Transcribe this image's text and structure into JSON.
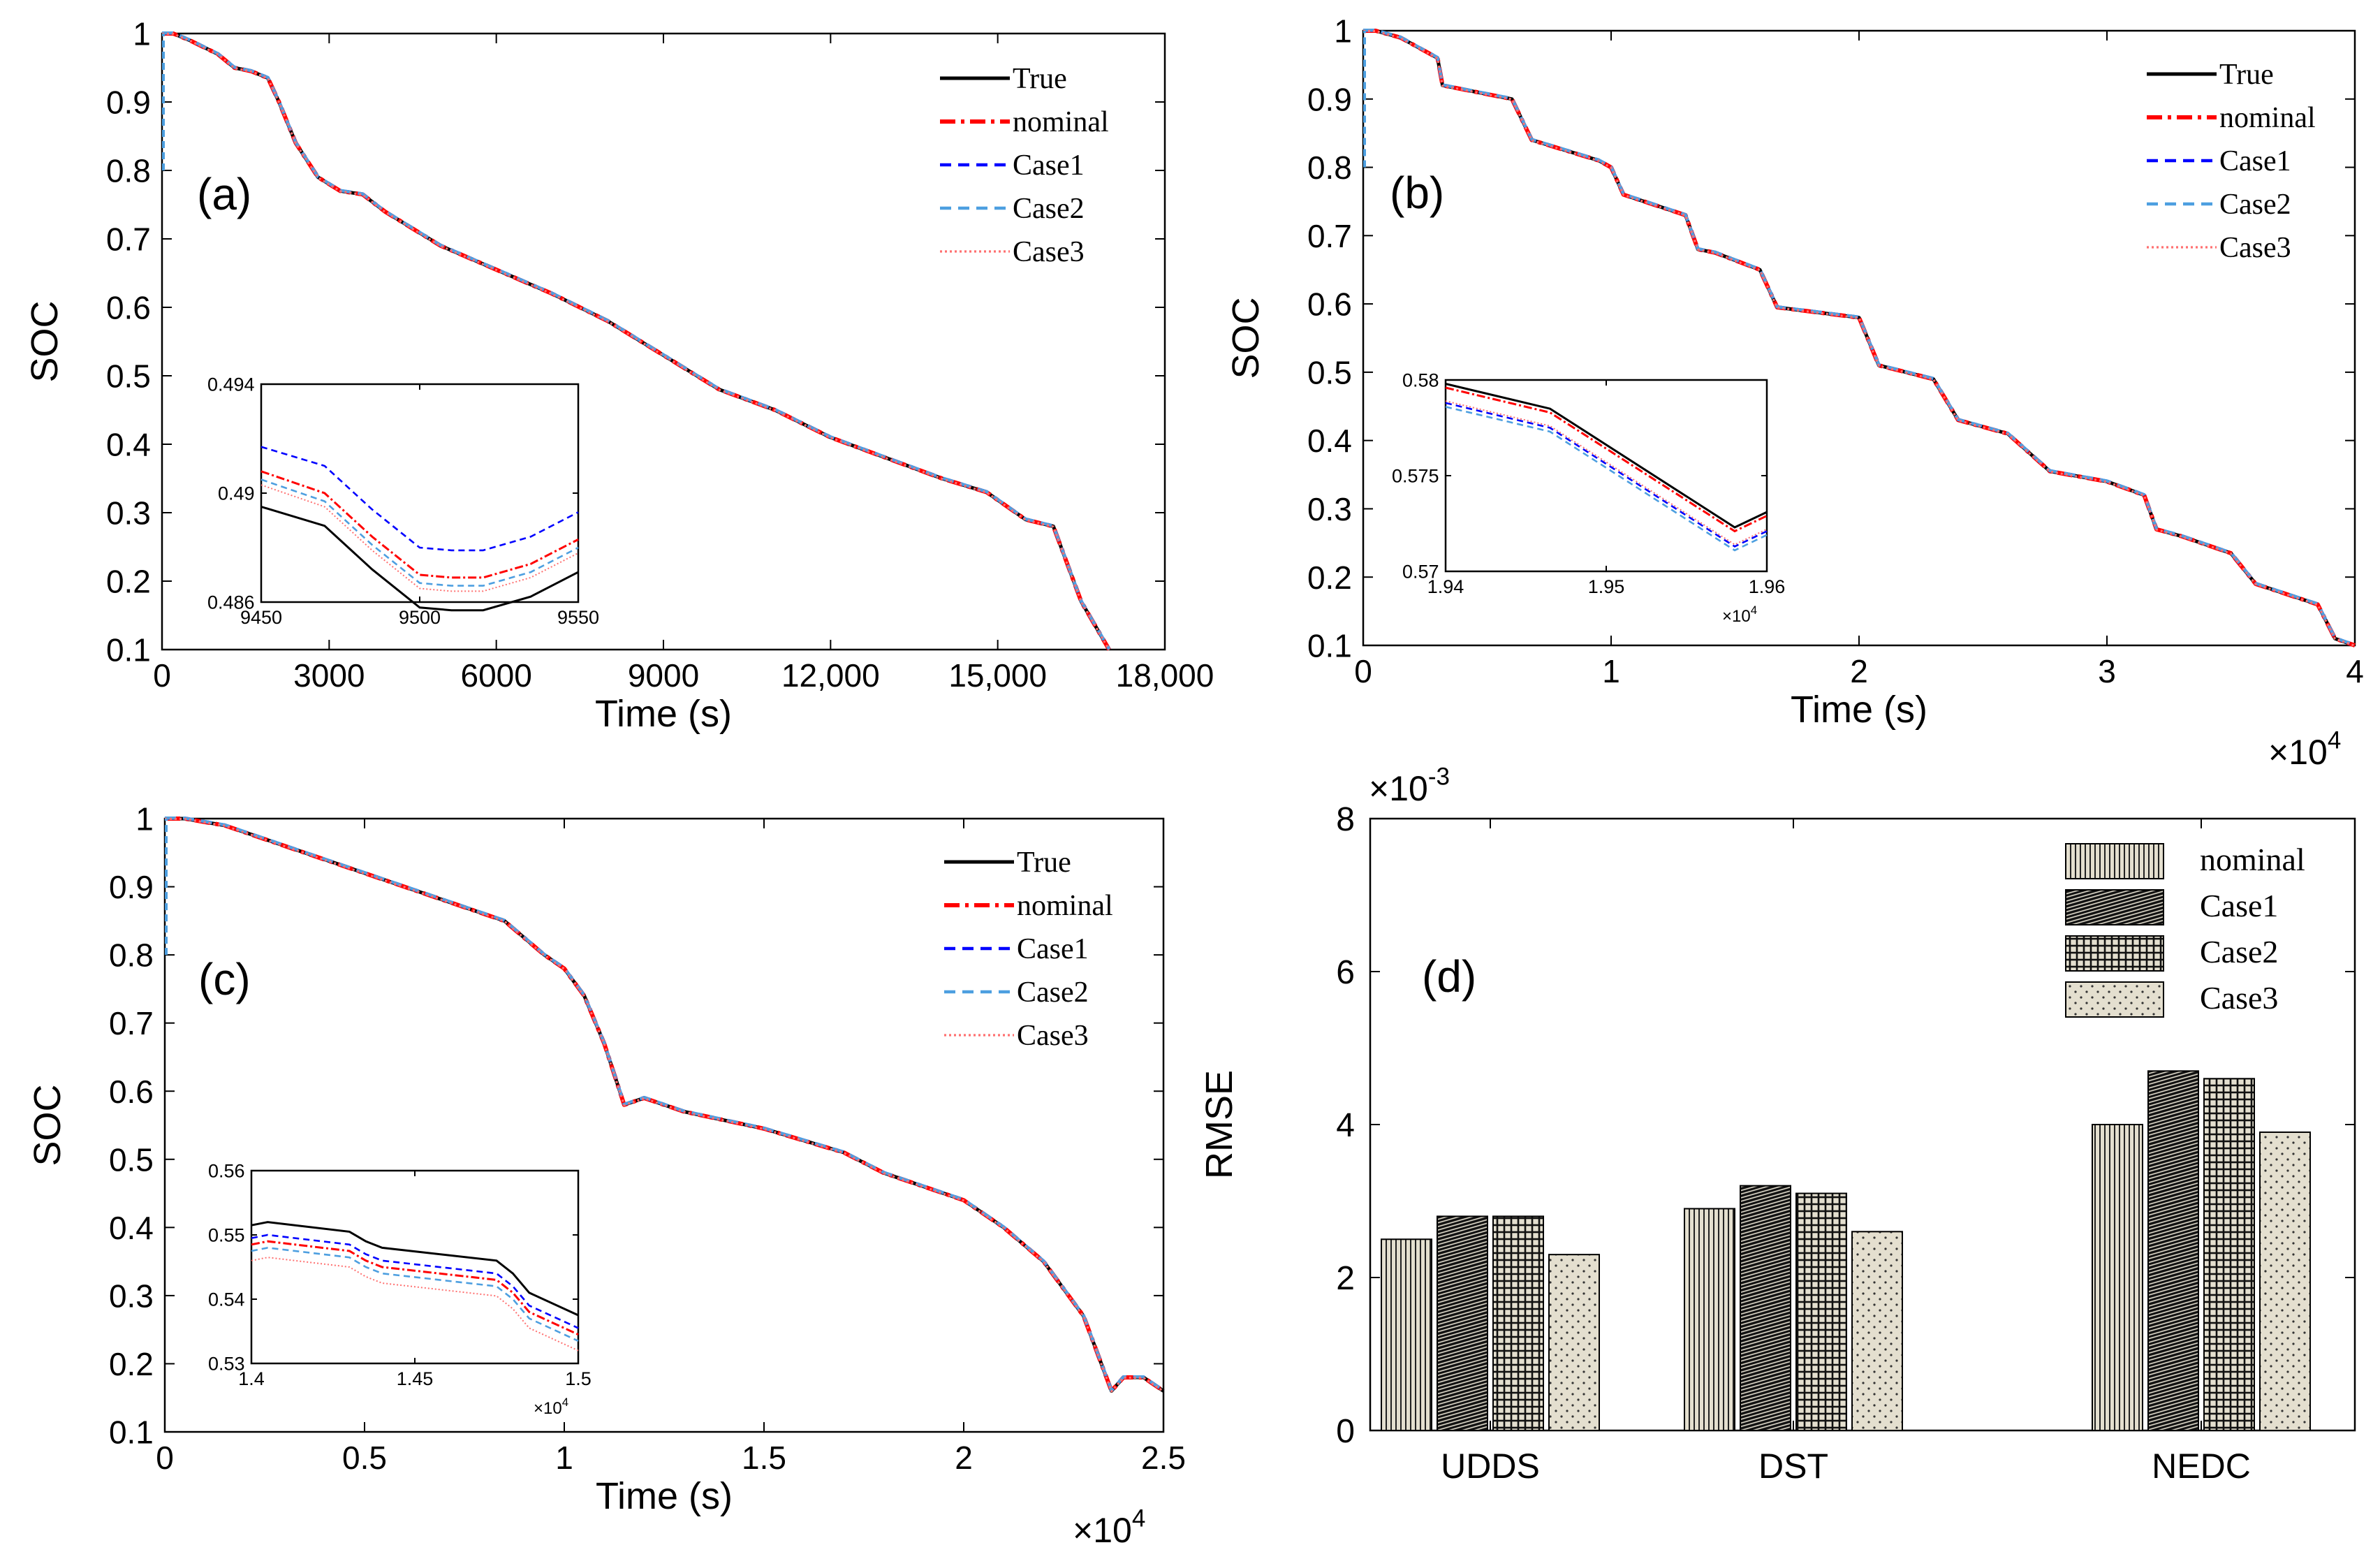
{
  "figure": {
    "description_none": ""
  },
  "legend_soc": [
    "True",
    "nominal",
    "Case1",
    "Case2",
    "Case3"
  ],
  "legend_rmse": [
    "nominal",
    "Case1",
    "Case2",
    "Case3"
  ],
  "colors": {
    "True": "#000000",
    "nominal": "#ff0000",
    "Case1": "#0000ff",
    "Case2": "#4d9fe0",
    "Case3": "#ff7070"
  },
  "chart_data": [
    {
      "type": "line",
      "panel": "(a)",
      "xlabel": "Time (s)",
      "ylabel": "SOC",
      "xlim": [
        0,
        18000
      ],
      "ylim": [
        0.1,
        1
      ],
      "xticks": [
        0,
        3000,
        6000,
        9000,
        12000,
        15000,
        18000
      ],
      "xtick_labels": [
        "0",
        "3000",
        "6000",
        "9000",
        "12,000",
        "15,000",
        "18,000"
      ],
      "yticks": [
        0.1,
        0.2,
        0.3,
        0.4,
        0.5,
        0.6,
        0.7,
        0.8,
        0.9,
        1
      ],
      "ytick_labels": [
        "0.1",
        "0.2",
        "0.3",
        "0.4",
        "0.5",
        "0.6",
        "0.7",
        "0.8",
        "0.9",
        "1"
      ],
      "x_multiplier": "",
      "series_names": [
        "True",
        "nominal",
        "Case1",
        "Case2",
        "Case3"
      ],
      "trajectory": {
        "x": [
          0,
          200,
          500,
          1000,
          1300,
          1600,
          1900,
          2100,
          2400,
          2800,
          3200,
          3600,
          4000,
          4500,
          5000,
          6000,
          7000,
          8000,
          9000,
          10000,
          11000,
          12000,
          13000,
          14000,
          14800,
          15500,
          16000,
          16500,
          17000
        ],
        "y": [
          1.0,
          1.0,
          0.99,
          0.97,
          0.95,
          0.945,
          0.935,
          0.9,
          0.84,
          0.79,
          0.77,
          0.765,
          0.74,
          0.715,
          0.69,
          0.655,
          0.62,
          0.58,
          0.53,
          0.48,
          0.45,
          0.41,
          0.38,
          0.35,
          0.33,
          0.29,
          0.28,
          0.17,
          0.1
        ]
      },
      "inset": {
        "xlim": [
          9450,
          9550
        ],
        "ylim": [
          0.486,
          0.494
        ],
        "xticks": [
          9450,
          9500,
          9550
        ],
        "yticks": [
          0.486,
          0.49,
          0.494
        ],
        "xtick_labels": [
          "9450",
          "9500",
          "9550"
        ],
        "ytick_labels": [
          "0.486",
          "0.49",
          "0.494"
        ],
        "x_multiplier": "",
        "series": [
          {
            "name": "True",
            "x": [
              9450,
              9470,
              9485,
              9500,
              9510,
              9520,
              9535,
              9550
            ],
            "y": [
              0.4895,
              0.4888,
              0.4872,
              0.4858,
              0.4857,
              0.4857,
              0.4862,
              0.4871
            ]
          },
          {
            "name": "nominal",
            "x": [
              9450,
              9470,
              9485,
              9500,
              9510,
              9520,
              9535,
              9550
            ],
            "y": [
              0.4908,
              0.49,
              0.4884,
              0.487,
              0.4869,
              0.4869,
              0.4874,
              0.4883
            ]
          },
          {
            "name": "Case1",
            "x": [
              9450,
              9470,
              9485,
              9500,
              9510,
              9520,
              9535,
              9550
            ],
            "y": [
              0.4917,
              0.491,
              0.4894,
              0.488,
              0.4879,
              0.4879,
              0.4884,
              0.4893
            ]
          },
          {
            "name": "Case2",
            "x": [
              9450,
              9470,
              9485,
              9500,
              9510,
              9520,
              9535,
              9550
            ],
            "y": [
              0.4905,
              0.4897,
              0.4881,
              0.4867,
              0.4866,
              0.4866,
              0.4871,
              0.488
            ]
          },
          {
            "name": "Case3",
            "x": [
              9450,
              9470,
              9485,
              9500,
              9510,
              9520,
              9535,
              9550
            ],
            "y": [
              0.4903,
              0.4895,
              0.4879,
              0.4865,
              0.4864,
              0.4864,
              0.4869,
              0.4878
            ]
          }
        ]
      }
    },
    {
      "type": "line",
      "panel": "(b)",
      "xlabel": "Time (s)",
      "ylabel": "SOC",
      "xlim": [
        0,
        4
      ],
      "ylim": [
        0.1,
        1
      ],
      "xticks": [
        0,
        1,
        2,
        3,
        4
      ],
      "xtick_labels": [
        "0",
        "1",
        "2",
        "3",
        "4"
      ],
      "yticks": [
        0.1,
        0.2,
        0.3,
        0.4,
        0.5,
        0.6,
        0.7,
        0.8,
        0.9,
        1
      ],
      "ytick_labels": [
        "0.1",
        "0.2",
        "0.3",
        "0.4",
        "0.5",
        "0.6",
        "0.7",
        "0.8",
        "0.9",
        "1"
      ],
      "x_multiplier": "×10",
      "x_multiplier_exp": "4",
      "series_names": [
        "True",
        "nominal",
        "Case1",
        "Case2",
        "Case3"
      ],
      "trajectory": {
        "x": [
          0,
          0.05,
          0.15,
          0.3,
          0.32,
          0.6,
          0.68,
          0.95,
          1.0,
          1.05,
          1.3,
          1.35,
          1.42,
          1.6,
          1.67,
          2.0,
          2.08,
          2.3,
          2.4,
          2.6,
          2.77,
          3.0,
          3.15,
          3.2,
          3.3,
          3.5,
          3.6,
          3.85,
          3.92,
          4.0
        ],
        "y": [
          1.0,
          1.0,
          0.99,
          0.96,
          0.92,
          0.9,
          0.84,
          0.81,
          0.8,
          0.76,
          0.73,
          0.68,
          0.675,
          0.65,
          0.595,
          0.58,
          0.51,
          0.49,
          0.43,
          0.41,
          0.355,
          0.34,
          0.32,
          0.27,
          0.26,
          0.235,
          0.19,
          0.16,
          0.11,
          0.1
        ]
      },
      "inset": {
        "xlim": [
          1.94,
          1.96
        ],
        "ylim": [
          0.57,
          0.58
        ],
        "xticks": [
          1.94,
          1.95,
          1.96
        ],
        "yticks": [
          0.57,
          0.575,
          0.58
        ],
        "xtick_labels": [
          "1.94",
          "1.95",
          "1.96"
        ],
        "ytick_labels": [
          "0.57",
          "0.575",
          "0.58"
        ],
        "x_multiplier": "×10",
        "x_multiplier_exp": "4",
        "series": [
          {
            "name": "True",
            "x": [
              1.94,
              1.9465,
              1.958,
              1.96
            ],
            "y": [
              0.5798,
              0.5785,
              0.5723,
              0.5731
            ]
          },
          {
            "name": "nominal",
            "x": [
              1.94,
              1.9465,
              1.958,
              1.96
            ],
            "y": [
              0.5796,
              0.5783,
              0.5721,
              0.5729
            ]
          },
          {
            "name": "Case1",
            "x": [
              1.94,
              1.9465,
              1.958,
              1.96
            ],
            "y": [
              0.5788,
              0.5775,
              0.5713,
              0.5721
            ]
          },
          {
            "name": "Case2",
            "x": [
              1.94,
              1.9465,
              1.958,
              1.96
            ],
            "y": [
              0.5786,
              0.5773,
              0.5711,
              0.5719
            ]
          },
          {
            "name": "Case3",
            "x": [
              1.94,
              1.9465,
              1.958,
              1.96
            ],
            "y": [
              0.5789,
              0.5776,
              0.5714,
              0.5722
            ]
          }
        ]
      }
    },
    {
      "type": "line",
      "panel": "(c)",
      "xlabel": "Time (s)",
      "ylabel": "SOC",
      "xlim": [
        0,
        2.5
      ],
      "ylim": [
        0.1,
        1
      ],
      "xticks": [
        0,
        0.5,
        1,
        1.5,
        2,
        2.5
      ],
      "xtick_labels": [
        "0",
        "0.5",
        "1",
        "1.5",
        "2",
        "2.5"
      ],
      "yticks": [
        0.1,
        0.2,
        0.3,
        0.4,
        0.5,
        0.6,
        0.7,
        0.8,
        0.9,
        1
      ],
      "ytick_labels": [
        "0.1",
        "0.2",
        "0.3",
        "0.4",
        "0.5",
        "0.6",
        "0.7",
        "0.8",
        "0.9",
        "1"
      ],
      "x_multiplier": "×10",
      "x_multiplier_exp": "4",
      "series_names": [
        "True",
        "nominal",
        "Case1",
        "Case2",
        "Case3"
      ],
      "trajectory": {
        "x": [
          0,
          0.05,
          0.15,
          0.3,
          0.5,
          0.7,
          0.85,
          0.95,
          1.0,
          1.05,
          1.1,
          1.15,
          1.2,
          1.3,
          1.5,
          1.7,
          1.8,
          2.0,
          2.1,
          2.2,
          2.3,
          2.37,
          2.4,
          2.45,
          2.5
        ],
        "y": [
          1.0,
          1.0,
          0.99,
          0.96,
          0.92,
          0.88,
          0.85,
          0.8,
          0.78,
          0.74,
          0.67,
          0.58,
          0.59,
          0.57,
          0.545,
          0.51,
          0.48,
          0.44,
          0.4,
          0.35,
          0.27,
          0.16,
          0.18,
          0.18,
          0.16
        ]
      },
      "inset": {
        "xlim": [
          1.4,
          1.5
        ],
        "ylim": [
          0.53,
          0.56
        ],
        "xticks": [
          1.4,
          1.45,
          1.5
        ],
        "yticks": [
          0.53,
          0.54,
          0.55,
          0.56
        ],
        "xtick_labels": [
          "1.4",
          "1.45",
          "1.5"
        ],
        "ytick_labels": [
          "0.53",
          "0.54",
          "0.55",
          "0.56"
        ],
        "x_multiplier": "×10",
        "x_multiplier_exp": "4",
        "series": [
          {
            "name": "True",
            "x": [
              1.4,
              1.405,
              1.43,
              1.435,
              1.44,
              1.475,
              1.48,
              1.485,
              1.5
            ],
            "y": [
              0.5515,
              0.552,
              0.5505,
              0.549,
              0.548,
              0.546,
              0.544,
              0.541,
              0.5375
            ]
          },
          {
            "name": "nominal",
            "x": [
              1.4,
              1.405,
              1.43,
              1.435,
              1.44,
              1.475,
              1.48,
              1.485,
              1.5
            ],
            "y": [
              0.5485,
              0.549,
              0.5475,
              0.546,
              0.545,
              0.543,
              0.541,
              0.538,
              0.5345
            ]
          },
          {
            "name": "Case1",
            "x": [
              1.4,
              1.405,
              1.43,
              1.435,
              1.44,
              1.475,
              1.48,
              1.485,
              1.5
            ],
            "y": [
              0.5495,
              0.55,
              0.5485,
              0.547,
              0.546,
              0.544,
              0.542,
              0.539,
              0.5355
            ]
          },
          {
            "name": "Case2",
            "x": [
              1.4,
              1.405,
              1.43,
              1.435,
              1.44,
              1.475,
              1.48,
              1.485,
              1.5
            ],
            "y": [
              0.5475,
              0.548,
              0.5465,
              0.545,
              0.544,
              0.542,
              0.54,
              0.537,
              0.5335
            ]
          },
          {
            "name": "Case3",
            "x": [
              1.4,
              1.405,
              1.43,
              1.435,
              1.44,
              1.475,
              1.48,
              1.485,
              1.5
            ],
            "y": [
              0.546,
              0.5465,
              0.545,
              0.5435,
              0.5425,
              0.5405,
              0.5385,
              0.5355,
              0.532
            ]
          }
        ]
      }
    },
    {
      "type": "bar",
      "panel": "(d)",
      "xlabel": "",
      "ylabel": "RMSE",
      "ylim": [
        0,
        8
      ],
      "yticks": [
        0,
        2,
        4,
        6,
        8
      ],
      "ytick_labels": [
        "0",
        "2",
        "4",
        "6",
        "8"
      ],
      "y_multiplier": "×10",
      "y_multiplier_exp": "-3",
      "categories": [
        "UDDS",
        "DST",
        "NEDC"
      ],
      "series": [
        {
          "name": "nominal",
          "values": [
            2.5,
            2.9,
            4.0
          ]
        },
        {
          "name": "Case1",
          "values": [
            2.8,
            3.2,
            4.7
          ]
        },
        {
          "name": "Case2",
          "values": [
            2.8,
            3.1,
            4.6
          ]
        },
        {
          "name": "Case3",
          "values": [
            2.3,
            2.6,
            3.9
          ]
        }
      ]
    }
  ]
}
